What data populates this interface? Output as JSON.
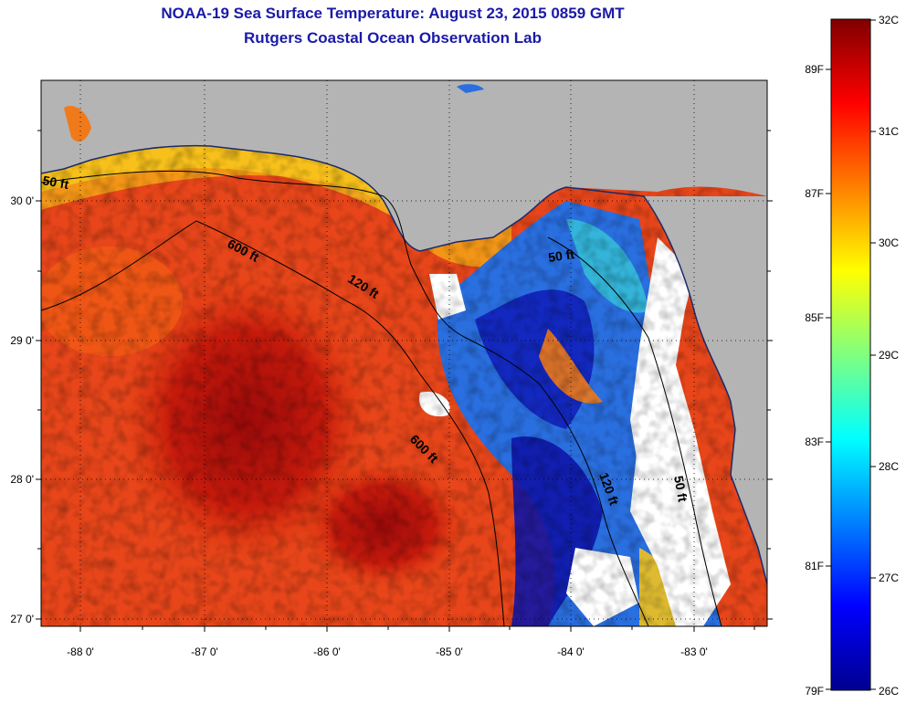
{
  "header": {
    "title": "NOAA-19 Sea Surface Temperature:  August 23, 2015 0859 GMT",
    "subtitle": "Rutgers Coastal Ocean Observation Lab"
  },
  "map": {
    "lon_labels": [
      "-88 0'",
      "-87 0'",
      "-86 0'",
      "-85 0'",
      "-84 0'",
      "-83 0'"
    ],
    "lat_labels": [
      "30 0'",
      "29 0'",
      "28 0'",
      "27 0'"
    ],
    "contours": [
      "50 ft",
      "120 ft",
      "600 ft",
      "600 ft",
      "50 ft",
      "120 ft",
      "50 ft"
    ],
    "colors": {
      "land": "#b4b4b4",
      "no_data": "#ffffff",
      "grid": "#000000"
    }
  },
  "colorbar": {
    "celsius": [
      "32C",
      "31C",
      "30C",
      "29C",
      "28C",
      "27C",
      "26C"
    ],
    "fahrenheit": [
      "89F",
      "87F",
      "85F",
      "83F",
      "81F",
      "79F"
    ]
  }
}
